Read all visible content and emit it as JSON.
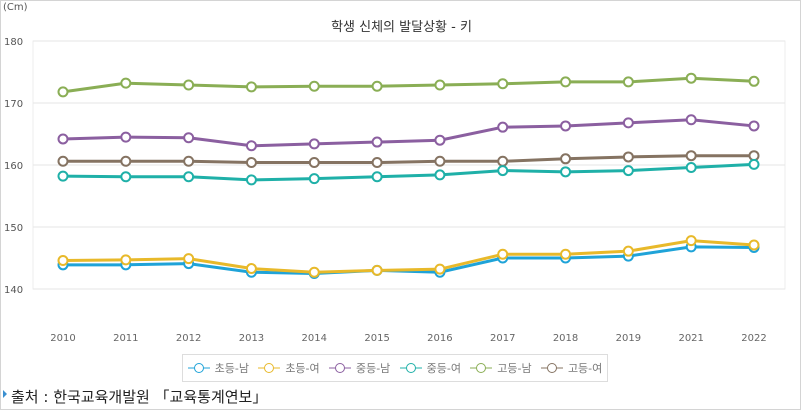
{
  "chart_data": {
    "type": "line",
    "title": "학생 신체의 발달상황 - 키",
    "unit_label": "(Cm)",
    "categories": [
      "2010",
      "2011",
      "2012",
      "2013",
      "2014",
      "2015",
      "2016",
      "2017",
      "2018",
      "2019",
      "2021",
      "2022"
    ],
    "ylim": [
      140,
      180
    ],
    "yticks": [
      "140",
      "150",
      "160",
      "170",
      "180"
    ],
    "grid": true,
    "legend_position": "bottom",
    "series": [
      {
        "name": "초등-남",
        "color": "#1fa3d8",
        "values": [
          143.9,
          143.9,
          144.1,
          142.7,
          142.5,
          143.0,
          142.7,
          145.0,
          145.0,
          145.3,
          146.8,
          146.7
        ]
      },
      {
        "name": "초등-여",
        "color": "#e8b92a",
        "values": [
          144.6,
          144.7,
          144.9,
          143.3,
          142.7,
          143.0,
          143.2,
          145.6,
          145.6,
          146.1,
          147.8,
          147.1
        ]
      },
      {
        "name": "중등-남",
        "color": "#8b5fa0",
        "values": [
          164.2,
          164.5,
          164.4,
          163.1,
          163.4,
          163.7,
          164.0,
          166.1,
          166.3,
          166.8,
          167.3,
          166.3
        ]
      },
      {
        "name": "중등-여",
        "color": "#1fb0a8",
        "values": [
          158.2,
          158.1,
          158.1,
          157.6,
          157.8,
          158.1,
          158.4,
          159.1,
          158.9,
          159.1,
          159.6,
          160.1
        ]
      },
      {
        "name": "고등-남",
        "color": "#8aae55",
        "values": [
          171.8,
          173.2,
          172.9,
          172.6,
          172.7,
          172.7,
          172.9,
          173.1,
          173.4,
          173.4,
          174.0,
          173.5
        ]
      },
      {
        "name": "고등-여",
        "color": "#857362",
        "values": [
          160.6,
          160.6,
          160.6,
          160.4,
          160.4,
          160.4,
          160.6,
          160.6,
          161.0,
          161.3,
          161.5,
          161.5
        ]
      }
    ]
  },
  "source": "출처 : 한국교육개발원 「교육통계연보」"
}
